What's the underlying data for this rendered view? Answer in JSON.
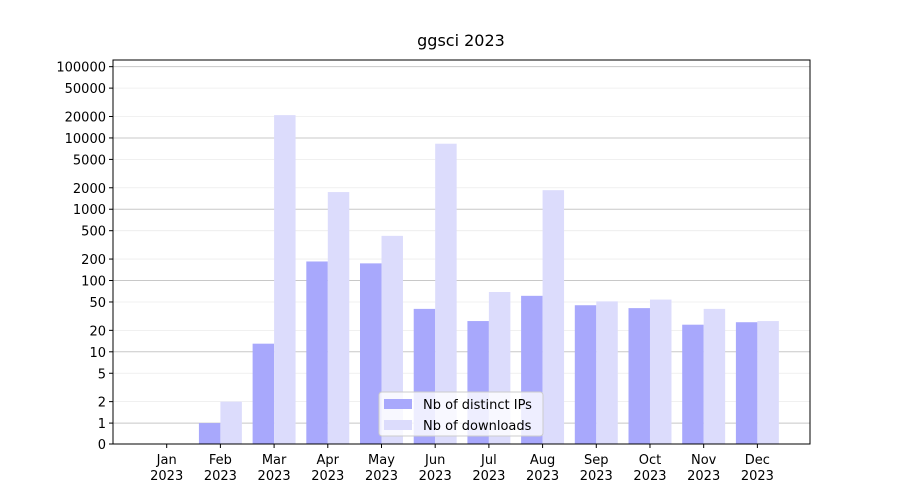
{
  "chart_data": {
    "type": "bar",
    "title": "ggsci 2023",
    "categories": [
      "Jan\n2023",
      "Feb\n2023",
      "Mar\n2023",
      "Apr\n2023",
      "May\n2023",
      "Jun\n2023",
      "Jul\n2023",
      "Aug\n2023",
      "Sep\n2023",
      "Oct\n2023",
      "Nov\n2023",
      "Dec\n2023"
    ],
    "series": [
      {
        "name": "Nb of distinct IPs",
        "color": "#a8a8fc",
        "values": [
          0,
          1,
          13,
          185,
          174,
          40,
          27,
          61,
          45,
          41,
          24,
          26
        ]
      },
      {
        "name": "Nb of downloads",
        "color": "#dcdcfc",
        "values": [
          0,
          2,
          20900,
          1740,
          423,
          8300,
          69,
          1850,
          51,
          54,
          40,
          27
        ]
      }
    ],
    "yscale": "symlog",
    "ylim": [
      0,
      124000
    ],
    "yticks": [
      0,
      1,
      2,
      5,
      10,
      20,
      50,
      100,
      200,
      500,
      1000,
      2000,
      5000,
      10000,
      20000,
      50000,
      100000
    ],
    "grid": true,
    "legend": "lower center"
  }
}
